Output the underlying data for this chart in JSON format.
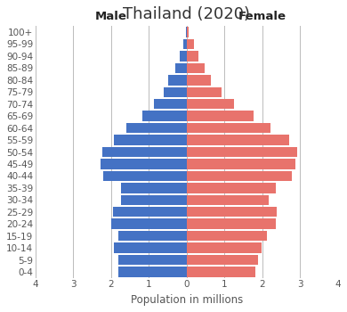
{
  "title": "Thailand (2020)",
  "xlabel": "Population in millions",
  "male_label": "Male",
  "female_label": "Female",
  "age_groups": [
    "0-4",
    "5-9",
    "10-14",
    "15-19",
    "20-24",
    "25-29",
    "30-34",
    "35-39",
    "40-44",
    "45-49",
    "50-54",
    "55-59",
    "60-64",
    "65-69",
    "70-74",
    "75-79",
    "80-84",
    "85-89",
    "90-94",
    "95-99",
    "100+"
  ],
  "male_values": [
    1.8,
    1.8,
    1.92,
    1.8,
    2.0,
    1.95,
    1.75,
    1.75,
    2.2,
    2.28,
    2.23,
    1.92,
    1.6,
    1.18,
    0.87,
    0.62,
    0.48,
    0.3,
    0.18,
    0.08,
    0.02
  ],
  "female_values": [
    1.82,
    1.88,
    1.98,
    2.12,
    2.35,
    2.38,
    2.18,
    2.35,
    2.78,
    2.88,
    2.92,
    2.72,
    2.22,
    1.78,
    1.25,
    0.92,
    0.65,
    0.47,
    0.3,
    0.18,
    0.06
  ],
  "male_color": "#4472C4",
  "female_color": "#E8736C",
  "background_color": "#FFFFFF",
  "grid_color": "#BBBBBB",
  "xlim": 4,
  "bar_height": 0.85,
  "title_fontsize": 13,
  "label_fontsize": 9.5,
  "tick_fontsize": 7.5,
  "axis_label_fontsize": 8.5
}
